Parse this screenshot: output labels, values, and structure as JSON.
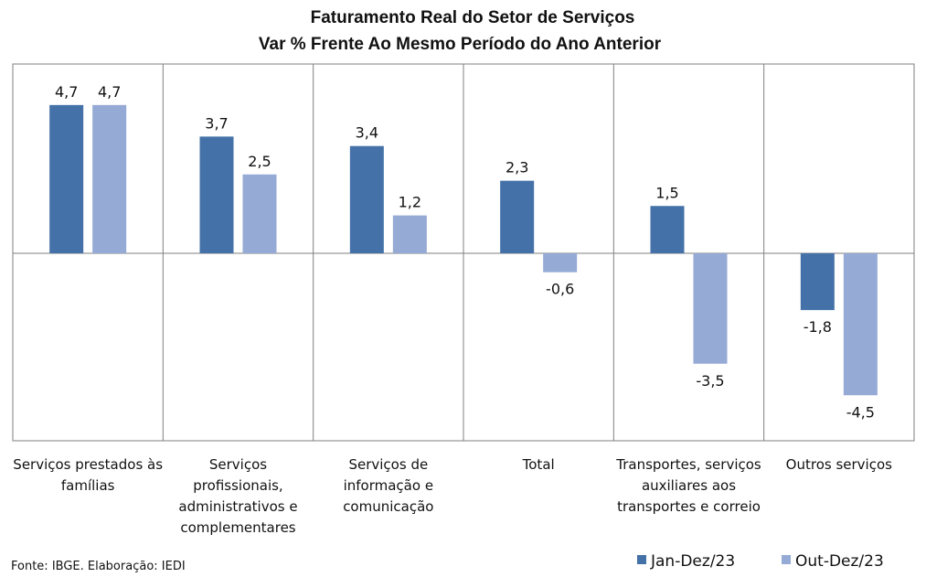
{
  "chart_data": {
    "type": "bar",
    "title_lines": [
      "Faturamento Real do Setor de Serviços",
      "Var % Frente Ao Mesmo Período do Ano Anterior"
    ],
    "categories": [
      [
        "Serviços prestados às",
        "famílias"
      ],
      [
        "Serviços",
        "profissionais,",
        "administrativos e",
        "complementares"
      ],
      [
        "Serviços de",
        "informação e",
        "comunicação"
      ],
      [
        "Total"
      ],
      [
        "Transportes, serviços",
        "auxiliares aos",
        "transportes e correio"
      ],
      [
        "Outros serviços"
      ]
    ],
    "series": [
      {
        "name": "Jan-Dez/23",
        "color": "#4472a8",
        "values": [
          4.7,
          3.7,
          3.4,
          2.3,
          1.5,
          -1.8
        ],
        "labels": [
          "4,7",
          "3,7",
          "3,4",
          "2,3",
          "1,5",
          "-1,8"
        ]
      },
      {
        "name": "Out-Dez/23",
        "color": "#95aad4",
        "values": [
          4.7,
          2.5,
          1.2,
          -0.6,
          -3.5,
          -4.5
        ],
        "labels": [
          "4,7",
          "2,5",
          "1,2",
          "-0,6",
          "-3,5",
          "-4,5"
        ]
      }
    ],
    "ylim": [
      -6,
      6
    ],
    "grid": false,
    "legend_position": "bottom-right",
    "source": "Fonte: IBGE. Elaboração: IEDI"
  }
}
